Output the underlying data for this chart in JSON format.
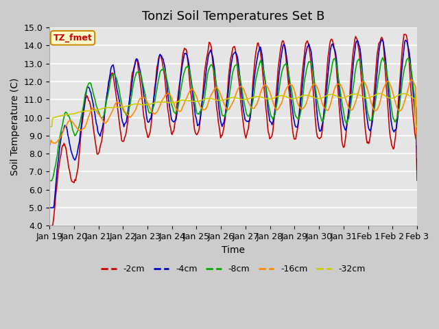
{
  "title": "Tonzi Soil Temperatures Set B",
  "xlabel": "Time",
  "ylabel": "Soil Temperature (C)",
  "ylim": [
    4.0,
    15.0
  ],
  "yticks": [
    4.0,
    5.0,
    6.0,
    7.0,
    8.0,
    9.0,
    10.0,
    11.0,
    12.0,
    13.0,
    14.0,
    15.0
  ],
  "xtick_labels": [
    "Jan 19",
    "Jan 20",
    "Jan 21",
    "Jan 22",
    "Jan 23",
    "Jan 24",
    "Jan 25",
    "Jan 26",
    "Jan 27",
    "Jan 28",
    "Jan 29",
    "Jan 30",
    "Jan 31",
    "Feb 1",
    "Feb 2",
    "Feb 3"
  ],
  "xtick_pos": [
    0,
    1,
    2,
    3,
    4,
    5,
    6,
    7,
    8,
    9,
    10,
    11,
    12,
    13,
    14,
    15
  ],
  "legend_label": "TZ_fmet",
  "series_labels": [
    "-2cm",
    "-4cm",
    "-8cm",
    "-16cm",
    "-32cm"
  ],
  "series_colors": [
    "#cc0000",
    "#0000cc",
    "#00aa00",
    "#ff8800",
    "#cccc00"
  ],
  "background_color": "#e5e5e5",
  "title_fontsize": 13,
  "axis_fontsize": 10,
  "tick_fontsize": 9,
  "n_points": 480,
  "days": 15
}
